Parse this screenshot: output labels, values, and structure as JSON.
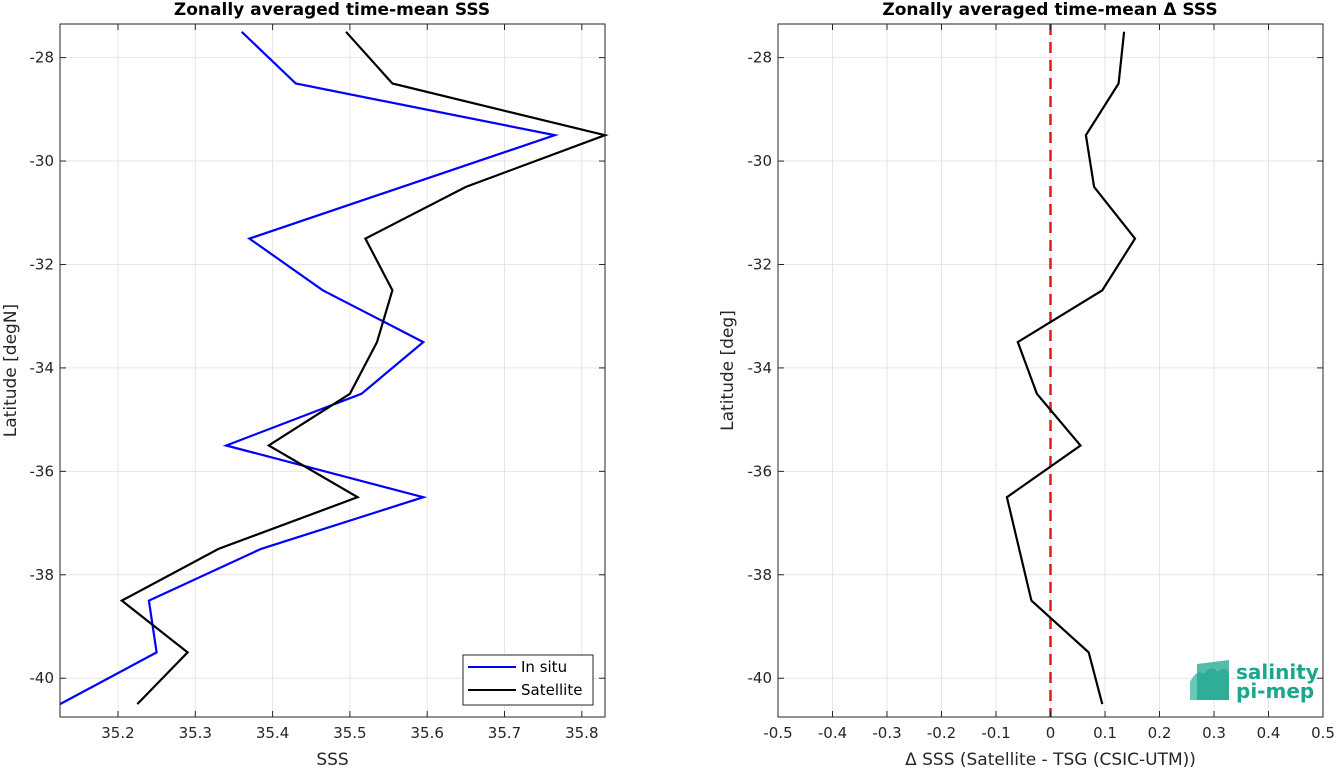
{
  "chart_data": [
    {
      "type": "line",
      "title": "Zonally averaged time-mean SSS",
      "xlabel": "SSS",
      "ylabel": "Latitude [degN]",
      "xlim": [
        35.125,
        35.83
      ],
      "ylim": [
        -40.75,
        -27.35
      ],
      "xticks": [
        "35.2",
        "35.3",
        "35.4",
        "35.5",
        "35.6",
        "35.7",
        "35.8"
      ],
      "yticks": [
        "-28",
        "-30",
        "-32",
        "-34",
        "-36",
        "-38",
        "-40"
      ],
      "grid": true,
      "legend": "bottom-right",
      "series": [
        {
          "name": "In situ",
          "color": "#0000ff",
          "x": [
            35.36,
            35.43,
            35.765,
            35.37,
            35.465,
            35.595,
            35.515,
            35.34,
            35.595,
            35.385,
            35.24,
            35.25,
            35.125
          ],
          "y": [
            -27.5,
            -28.5,
            -29.5,
            -31.5,
            -32.5,
            -33.5,
            -34.5,
            -35.5,
            -36.5,
            -37.5,
            -38.5,
            -39.5,
            -40.5
          ]
        },
        {
          "name": "Satellite",
          "color": "#000000",
          "x": [
            35.495,
            35.555,
            35.83,
            35.65,
            35.52,
            35.555,
            35.535,
            35.5,
            35.395,
            35.51,
            35.33,
            35.205,
            35.29,
            35.225
          ],
          "y": [
            -27.5,
            -28.5,
            -29.5,
            -30.5,
            -31.5,
            -32.5,
            -33.5,
            -34.5,
            -35.5,
            -36.5,
            -37.5,
            -38.5,
            -39.5,
            -40.5
          ]
        }
      ]
    },
    {
      "type": "line",
      "title": "Zonally averaged time-mean Δ SSS",
      "xlabel": "Δ SSS (Satellite - TSG (CSIC-UTM))",
      "ylabel": "Latitude [deg]",
      "xlim": [
        -0.5,
        0.5
      ],
      "ylim": [
        -40.75,
        -27.35
      ],
      "xticks": [
        "-0.5",
        "-0.4",
        "-0.3",
        "-0.2",
        "-0.1",
        "0",
        "0.1",
        "0.2",
        "0.3",
        "0.4",
        "0.5"
      ],
      "yticks": [
        "-28",
        "-30",
        "-32",
        "-34",
        "-36",
        "-38",
        "-40"
      ],
      "grid": true,
      "zero_line_color": "#e31a1c",
      "series": [
        {
          "color": "#000000",
          "x": [
            0.135,
            0.125,
            0.065,
            0.08,
            0.155,
            0.095,
            -0.06,
            -0.025,
            0.055,
            -0.08,
            -0.035,
            0.07,
            0.095
          ],
          "y": [
            -27.5,
            -28.5,
            -29.5,
            -30.5,
            -31.5,
            -32.5,
            -33.5,
            -34.5,
            -35.5,
            -36.5,
            -38.5,
            -39.5,
            -40.5
          ]
        }
      ]
    }
  ],
  "logo": {
    "line1": "salinity",
    "line2": "pi-mep"
  }
}
